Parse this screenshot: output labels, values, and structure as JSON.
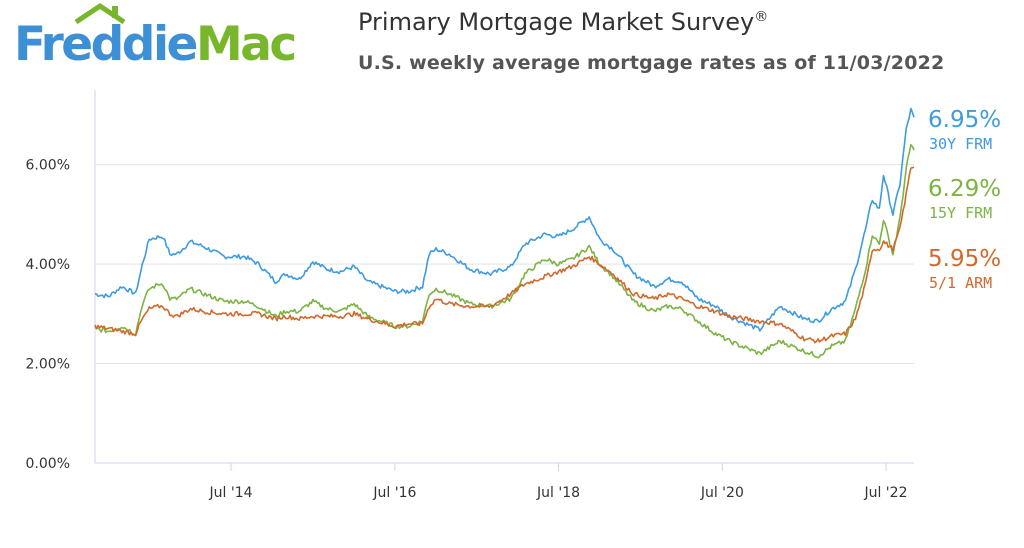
{
  "brand": {
    "name_part1": "Freddie",
    "name_part2": "Mac",
    "colors": {
      "blue": "#3d8fd6",
      "green": "#78b62c"
    }
  },
  "header": {
    "title": "Primary Mortgage Market Survey",
    "title_mark": "®",
    "subtitle": "U.S. weekly average mortgage rates as of 11/03/2022"
  },
  "chart_data": {
    "type": "line",
    "x_range": [
      "2012-11-01",
      "2022-11-03"
    ],
    "ylim": [
      0,
      7.5
    ],
    "y_ticks": [
      {
        "value": 0,
        "label": "0.00%"
      },
      {
        "value": 2,
        "label": "2.00%"
      },
      {
        "value": 4,
        "label": "4.00%"
      },
      {
        "value": 6,
        "label": "6.00%"
      }
    ],
    "x_ticks": [
      {
        "date": "2014-07-01",
        "label": "Jul '14"
      },
      {
        "date": "2016-07-01",
        "label": "Jul '16"
      },
      {
        "date": "2018-07-01",
        "label": "Jul '18"
      },
      {
        "date": "2020-07-01",
        "label": "Jul '20"
      },
      {
        "date": "2022-07-01",
        "label": "Jul '22"
      }
    ],
    "grid": true,
    "legend_position": "right",
    "series": [
      {
        "name": "30Y FRM",
        "latest_label": "6.95%",
        "color": "#3d9be0",
        "points": [
          [
            "2012-11-01",
            3.4
          ],
          [
            "2013-01-01",
            3.35
          ],
          [
            "2013-03-01",
            3.55
          ],
          [
            "2013-05-01",
            3.4
          ],
          [
            "2013-06-01",
            4.0
          ],
          [
            "2013-07-01",
            4.5
          ],
          [
            "2013-08-15",
            4.55
          ],
          [
            "2013-09-01",
            4.55
          ],
          [
            "2013-10-01",
            4.2
          ],
          [
            "2013-11-01",
            4.2
          ],
          [
            "2014-01-01",
            4.45
          ],
          [
            "2014-03-01",
            4.35
          ],
          [
            "2014-06-01",
            4.15
          ],
          [
            "2014-09-01",
            4.15
          ],
          [
            "2014-11-01",
            4.0
          ],
          [
            "2015-01-15",
            3.65
          ],
          [
            "2015-03-01",
            3.8
          ],
          [
            "2015-05-01",
            3.7
          ],
          [
            "2015-07-01",
            4.05
          ],
          [
            "2015-09-01",
            3.9
          ],
          [
            "2015-11-01",
            3.85
          ],
          [
            "2016-01-01",
            3.95
          ],
          [
            "2016-03-01",
            3.65
          ],
          [
            "2016-07-01",
            3.45
          ],
          [
            "2016-09-01",
            3.45
          ],
          [
            "2016-11-01",
            3.55
          ],
          [
            "2016-12-01",
            4.2
          ],
          [
            "2017-01-01",
            4.3
          ],
          [
            "2017-03-01",
            4.2
          ],
          [
            "2017-06-01",
            3.9
          ],
          [
            "2017-09-01",
            3.8
          ],
          [
            "2017-12-01",
            3.95
          ],
          [
            "2018-02-01",
            4.4
          ],
          [
            "2018-05-01",
            4.6
          ],
          [
            "2018-07-01",
            4.55
          ],
          [
            "2018-09-01",
            4.7
          ],
          [
            "2018-11-15",
            4.95
          ],
          [
            "2019-01-01",
            4.5
          ],
          [
            "2019-03-01",
            4.3
          ],
          [
            "2019-06-01",
            3.8
          ],
          [
            "2019-09-01",
            3.55
          ],
          [
            "2019-11-01",
            3.7
          ],
          [
            "2020-01-01",
            3.65
          ],
          [
            "2020-03-15",
            3.3
          ],
          [
            "2020-06-01",
            3.15
          ],
          [
            "2020-08-01",
            2.95
          ],
          [
            "2020-12-15",
            2.68
          ],
          [
            "2021-03-15",
            3.15
          ],
          [
            "2021-07-01",
            2.9
          ],
          [
            "2021-09-01",
            2.85
          ],
          [
            "2021-11-01",
            3.1
          ],
          [
            "2022-01-01",
            3.25
          ],
          [
            "2022-02-15",
            3.9
          ],
          [
            "2022-04-01",
            4.7
          ],
          [
            "2022-05-01",
            5.3
          ],
          [
            "2022-06-01",
            5.1
          ],
          [
            "2022-06-20",
            5.8
          ],
          [
            "2022-08-01",
            5.0
          ],
          [
            "2022-09-01",
            5.6
          ],
          [
            "2022-09-29",
            6.7
          ],
          [
            "2022-10-20",
            7.1
          ],
          [
            "2022-11-03",
            6.95
          ]
        ]
      },
      {
        "name": "15Y FRM",
        "latest_label": "6.29%",
        "color": "#7cb342",
        "points": [
          [
            "2012-11-01",
            2.7
          ],
          [
            "2013-01-01",
            2.65
          ],
          [
            "2013-03-01",
            2.75
          ],
          [
            "2013-05-01",
            2.6
          ],
          [
            "2013-06-01",
            3.2
          ],
          [
            "2013-07-01",
            3.5
          ],
          [
            "2013-08-15",
            3.6
          ],
          [
            "2013-09-01",
            3.6
          ],
          [
            "2013-10-01",
            3.3
          ],
          [
            "2013-11-01",
            3.3
          ],
          [
            "2014-01-01",
            3.5
          ],
          [
            "2014-03-01",
            3.4
          ],
          [
            "2014-06-01",
            3.25
          ],
          [
            "2014-09-01",
            3.25
          ],
          [
            "2014-11-01",
            3.15
          ],
          [
            "2015-01-15",
            2.95
          ],
          [
            "2015-03-01",
            3.05
          ],
          [
            "2015-05-01",
            3.05
          ],
          [
            "2015-07-01",
            3.25
          ],
          [
            "2015-09-01",
            3.1
          ],
          [
            "2015-11-01",
            3.05
          ],
          [
            "2016-01-01",
            3.2
          ],
          [
            "2016-03-01",
            2.95
          ],
          [
            "2016-07-01",
            2.75
          ],
          [
            "2016-09-01",
            2.75
          ],
          [
            "2016-11-01",
            2.85
          ],
          [
            "2016-12-01",
            3.4
          ],
          [
            "2017-01-01",
            3.5
          ],
          [
            "2017-03-01",
            3.4
          ],
          [
            "2017-06-01",
            3.2
          ],
          [
            "2017-09-01",
            3.15
          ],
          [
            "2017-12-01",
            3.3
          ],
          [
            "2018-02-01",
            3.8
          ],
          [
            "2018-05-01",
            4.1
          ],
          [
            "2018-07-01",
            4.0
          ],
          [
            "2018-09-01",
            4.1
          ],
          [
            "2018-11-15",
            4.35
          ],
          [
            "2019-01-01",
            4.0
          ],
          [
            "2019-03-01",
            3.75
          ],
          [
            "2019-06-01",
            3.25
          ],
          [
            "2019-09-01",
            3.05
          ],
          [
            "2019-11-01",
            3.15
          ],
          [
            "2020-01-01",
            3.1
          ],
          [
            "2020-03-15",
            2.85
          ],
          [
            "2020-06-01",
            2.6
          ],
          [
            "2020-08-01",
            2.45
          ],
          [
            "2020-12-15",
            2.2
          ],
          [
            "2021-03-15",
            2.45
          ],
          [
            "2021-07-01",
            2.25
          ],
          [
            "2021-09-01",
            2.15
          ],
          [
            "2021-11-01",
            2.35
          ],
          [
            "2022-01-01",
            2.45
          ],
          [
            "2022-02-15",
            3.1
          ],
          [
            "2022-04-01",
            3.9
          ],
          [
            "2022-05-01",
            4.6
          ],
          [
            "2022-06-01",
            4.4
          ],
          [
            "2022-06-20",
            4.9
          ],
          [
            "2022-08-01",
            4.2
          ],
          [
            "2022-09-01",
            4.9
          ],
          [
            "2022-09-29",
            5.9
          ],
          [
            "2022-10-20",
            6.4
          ],
          [
            "2022-11-03",
            6.29
          ]
        ]
      },
      {
        "name": "5/1 ARM",
        "latest_label": "5.95%",
        "color": "#d2692c",
        "points": [
          [
            "2012-11-01",
            2.75
          ],
          [
            "2013-01-01",
            2.7
          ],
          [
            "2013-03-01",
            2.65
          ],
          [
            "2013-05-01",
            2.6
          ],
          [
            "2013-06-01",
            2.9
          ],
          [
            "2013-07-01",
            3.1
          ],
          [
            "2013-08-15",
            3.15
          ],
          [
            "2013-09-01",
            3.15
          ],
          [
            "2013-10-01",
            3.0
          ],
          [
            "2013-11-01",
            2.95
          ],
          [
            "2014-01-01",
            3.1
          ],
          [
            "2014-03-01",
            3.05
          ],
          [
            "2014-06-01",
            3.0
          ],
          [
            "2014-09-01",
            3.0
          ],
          [
            "2014-11-01",
            3.0
          ],
          [
            "2015-01-15",
            2.9
          ],
          [
            "2015-03-01",
            2.95
          ],
          [
            "2015-05-01",
            2.9
          ],
          [
            "2015-07-01",
            2.95
          ],
          [
            "2015-09-01",
            2.95
          ],
          [
            "2015-11-01",
            2.95
          ],
          [
            "2016-01-01",
            3.0
          ],
          [
            "2016-03-01",
            2.9
          ],
          [
            "2016-07-01",
            2.75
          ],
          [
            "2016-09-01",
            2.8
          ],
          [
            "2016-11-01",
            2.8
          ],
          [
            "2016-12-01",
            3.15
          ],
          [
            "2017-01-01",
            3.3
          ],
          [
            "2017-03-01",
            3.2
          ],
          [
            "2017-06-01",
            3.15
          ],
          [
            "2017-09-01",
            3.15
          ],
          [
            "2017-12-01",
            3.4
          ],
          [
            "2018-02-01",
            3.6
          ],
          [
            "2018-05-01",
            3.75
          ],
          [
            "2018-07-01",
            3.85
          ],
          [
            "2018-09-01",
            3.95
          ],
          [
            "2018-11-15",
            4.15
          ],
          [
            "2019-01-01",
            4.0
          ],
          [
            "2019-03-01",
            3.8
          ],
          [
            "2019-06-01",
            3.4
          ],
          [
            "2019-09-01",
            3.3
          ],
          [
            "2019-11-01",
            3.4
          ],
          [
            "2020-01-01",
            3.3
          ],
          [
            "2020-03-15",
            3.15
          ],
          [
            "2020-06-01",
            3.05
          ],
          [
            "2020-08-01",
            2.95
          ],
          [
            "2020-12-15",
            2.85
          ],
          [
            "2021-03-15",
            2.8
          ],
          [
            "2021-07-01",
            2.5
          ],
          [
            "2021-09-01",
            2.45
          ],
          [
            "2021-11-01",
            2.55
          ],
          [
            "2022-01-01",
            2.6
          ],
          [
            "2022-02-15",
            2.9
          ],
          [
            "2022-04-01",
            3.6
          ],
          [
            "2022-05-01",
            4.3
          ],
          [
            "2022-06-01",
            4.3
          ],
          [
            "2022-06-20",
            4.45
          ],
          [
            "2022-08-01",
            4.3
          ],
          [
            "2022-09-01",
            4.7
          ],
          [
            "2022-09-29",
            5.4
          ],
          [
            "2022-10-20",
            5.95
          ],
          [
            "2022-11-03",
            5.95
          ]
        ]
      }
    ]
  }
}
